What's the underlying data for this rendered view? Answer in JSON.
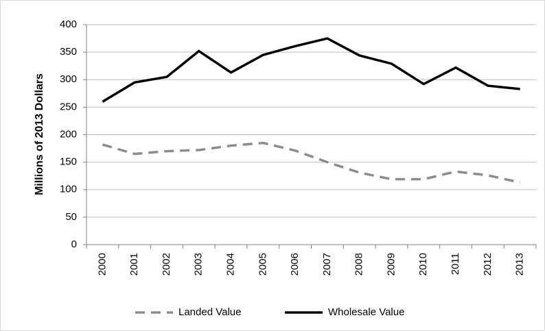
{
  "chart_data": {
    "type": "line",
    "y_label": "Millions of 2013 Dollars",
    "categories": [
      "2000",
      "2001",
      "2002",
      "2003",
      "2004",
      "2005",
      "2006",
      "2007",
      "2008",
      "2009",
      "2010",
      "2011",
      "2012",
      "2013"
    ],
    "series": [
      {
        "name": "Landed Value",
        "color": "#8c8c8c",
        "style": "dashed",
        "values": [
          182,
          165,
          170,
          172,
          180,
          185,
          171,
          150,
          131,
          119,
          119,
          133,
          126,
          113
        ]
      },
      {
        "name": "Wholesale Value",
        "color": "#000000",
        "style": "solid",
        "values": [
          260,
          295,
          305,
          352,
          313,
          345,
          361,
          375,
          344,
          329,
          292,
          322,
          289,
          283
        ]
      }
    ],
    "ylim": [
      0,
      400
    ],
    "yticks": [
      0,
      50,
      100,
      150,
      200,
      250,
      300,
      350,
      400
    ],
    "grid": true,
    "legend": "bottom"
  }
}
